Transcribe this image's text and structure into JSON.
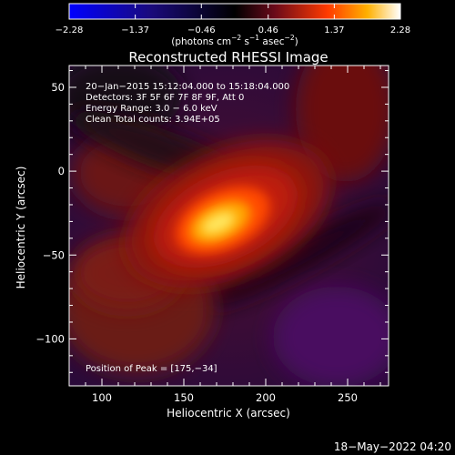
{
  "chart_data": {
    "type": "heatmap",
    "title": "Reconstructed RHESSI Image",
    "xlabel": "Heliocentric X (arcsec)",
    "ylabel": "Heliocentric Y (arcsec)",
    "xlim": [
      80,
      275
    ],
    "ylim": [
      -128,
      63
    ],
    "x_ticks": [
      100,
      150,
      200,
      250
    ],
    "y_ticks": [
      50,
      0,
      -50,
      -100
    ],
    "x_tick_labels": [
      "100",
      "150",
      "200",
      "250"
    ],
    "y_tick_labels": [
      "50",
      "0",
      "−50",
      "−100"
    ],
    "colorbar": {
      "range": [
        -2.28,
        2.28
      ],
      "ticks": [
        "−2.28",
        "−1.37",
        "−0.46",
        "0.46",
        "1.37",
        "2.28"
      ],
      "tick_values": [
        -2.28,
        -1.37,
        -0.46,
        0.46,
        1.37,
        2.28
      ],
      "unit_main": "(photons cm",
      "unit_sup1": "−2",
      "unit_mid": " s",
      "unit_sup2": "−1",
      "unit_mid2": " asec",
      "unit_sup3": "−2",
      "unit_end": ")"
    },
    "annotations": [
      "20−Jan−2015 15:12:04.000 to 15:18:04.000",
      "Detectors: 3F 5F 6F 7F 8F 9F, Att 0",
      "Energy Range: 3.0 − 6.0 keV",
      "Clean    Total counts: 3.94E+05"
    ],
    "peak_label": "Position of Peak = [175,−34]",
    "peak_position": [
      175,
      -34
    ],
    "timestamp": "18−May−2022 04:20"
  }
}
